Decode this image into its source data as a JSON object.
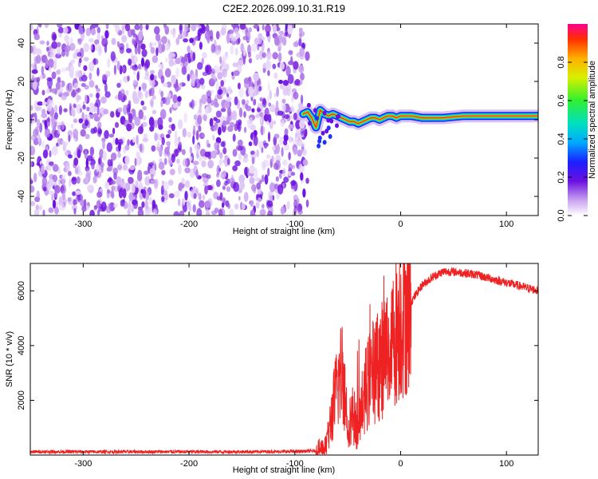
{
  "title": "C2E2.2026.099.10.31.R19",
  "chart_data": [
    {
      "type": "heatmap",
      "name": "spectrogram",
      "xlabel": "Height of straight line (km)",
      "ylabel": "Frequency (Hz)",
      "xlim": [
        -350,
        130
      ],
      "ylim": [
        -50,
        50
      ],
      "xticks": [
        -300,
        -200,
        -100,
        0,
        100
      ],
      "yticks": [
        -40,
        -20,
        0,
        20,
        40
      ],
      "noise_region_x": [
        -350,
        -88
      ],
      "signal_track": {
        "x": [
          -92,
          -88,
          -84,
          -80,
          -76,
          -72,
          -68,
          -64,
          -60,
          -56,
          -52,
          -48,
          -44,
          -40,
          -36,
          -32,
          -28,
          -24,
          -20,
          -16,
          -12,
          -8,
          -4,
          0,
          10,
          20,
          40,
          60,
          80,
          100,
          130
        ],
        "freq": [
          3,
          4,
          1,
          -4,
          5,
          3,
          2,
          3,
          2,
          1,
          0,
          -1,
          -1,
          -2,
          -1,
          0,
          1,
          1,
          0,
          1,
          2,
          2,
          1,
          2,
          2,
          1,
          1,
          2,
          2,
          2,
          2
        ]
      },
      "colorbar": {
        "label": "Normalized spectral amplitude",
        "range": [
          0.0,
          1.0
        ],
        "ticks": [
          0.0,
          0.2,
          0.4,
          0.6,
          0.8
        ]
      }
    },
    {
      "type": "line",
      "name": "snr",
      "xlabel": "Height of straight line (km)",
      "ylabel": "SNR (10 * v/v)",
      "xlim": [
        -350,
        130
      ],
      "ylim": [
        0,
        7000
      ],
      "xticks": [
        -300,
        -200,
        -100,
        0,
        100
      ],
      "yticks": [
        2000,
        4000,
        6000
      ],
      "color": "#ee2222",
      "series": [
        {
          "name": "SNR",
          "x": [
            -350,
            -300,
            -250,
            -200,
            -150,
            -100,
            -80,
            -70,
            -65,
            -60,
            -55,
            -50,
            -45,
            -40,
            -35,
            -30,
            -25,
            -20,
            -15,
            -10,
            -5,
            0,
            5,
            10,
            20,
            30,
            40,
            50,
            60,
            70,
            80,
            90,
            100,
            110,
            120,
            130
          ],
          "y": [
            120,
            120,
            120,
            120,
            120,
            130,
            150,
            300,
            1500,
            2500,
            3200,
            1200,
            1500,
            900,
            2200,
            2700,
            3100,
            3400,
            3600,
            4000,
            4500,
            5000,
            5300,
            5600,
            6200,
            6500,
            6700,
            6700,
            6650,
            6600,
            6500,
            6400,
            6300,
            6200,
            6100,
            6000
          ]
        }
      ]
    }
  ]
}
